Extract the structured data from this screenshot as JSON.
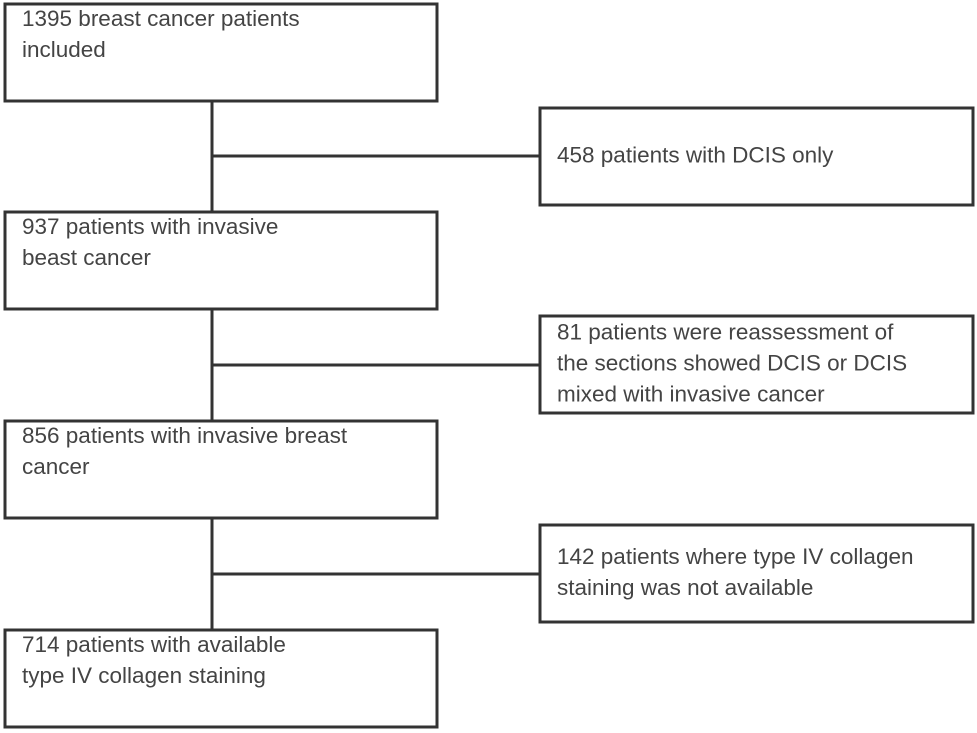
{
  "nodes": [
    {
      "lines": [
        "1395 breast cancer patients",
        "included"
      ]
    },
    {
      "lines": [
        "937 patients with invasive",
        "beast cancer"
      ]
    },
    {
      "lines": [
        "856 patients with invasive breast",
        "cancer"
      ]
    },
    {
      "lines": [
        "714 patients with available",
        "type IV collagen staining"
      ]
    }
  ],
  "exclusions": [
    {
      "lines": [
        "458 patients with DCIS only"
      ]
    },
    {
      "lines": [
        "81 patients were reassessment of",
        "the sections showed DCIS or DCIS",
        "mixed with invasive cancer"
      ]
    },
    {
      "lines": [
        "142 patients where type IV collagen",
        "staining was not available"
      ]
    }
  ]
}
